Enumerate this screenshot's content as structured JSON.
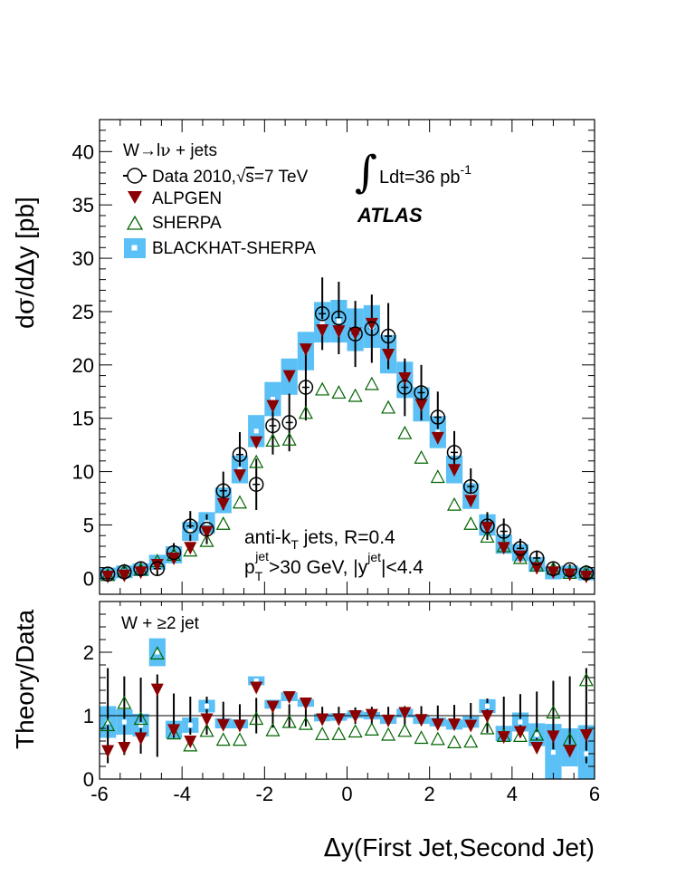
{
  "chart_data": [
    {
      "type": "scatter",
      "panel": "main",
      "ylabel_parts": [
        "d",
        "σ",
        "/d",
        "Δ",
        "y [pb]"
      ],
      "ylim": [
        -1.5,
        43
      ],
      "xlim": [
        -6,
        6
      ],
      "yticks": [
        0,
        5,
        10,
        15,
        20,
        25,
        30,
        35,
        40
      ],
      "legend": {
        "header_parts": [
          "W",
          "→",
          "l",
          "ν",
          " + jets"
        ],
        "data_parts": [
          "Data 2010,",
          "√",
          "s",
          "=7 TeV"
        ],
        "alpgen": "ALPGEN",
        "sherpa": "SHERPA",
        "blackhat": "BLACKHAT-SHERPA",
        "position": "top-left"
      },
      "lumi_parts": [
        "∫",
        "Ldt=36 pb",
        "-1"
      ],
      "atlas_label": "ATLAS",
      "annotation1_parts": [
        "anti-k",
        "T",
        " jets, R=0.4"
      ],
      "annotation2_parts": [
        "p",
        "T",
        "jet",
        ">30 GeV, |y",
        "jet",
        "|<4.4"
      ],
      "x": [
        -5.8,
        -5.4,
        -5.0,
        -4.6,
        -4.2,
        -3.8,
        -3.4,
        -3.0,
        -2.6,
        -2.2,
        -1.8,
        -1.4,
        -1.0,
        -0.6,
        -0.2,
        0.2,
        0.6,
        1.0,
        1.4,
        1.8,
        2.2,
        2.6,
        3.0,
        3.4,
        3.8,
        4.2,
        4.6,
        5.0,
        5.4,
        5.8
      ],
      "series": [
        {
          "name": "Data 2010,√s=7 TeV",
          "marker": "open-circle",
          "values": [
            0.4,
            0.6,
            0.9,
            0.9,
            2.4,
            4.9,
            4.6,
            8.2,
            11.6,
            8.8,
            14.3,
            14.6,
            17.9,
            24.8,
            24.4,
            22.9,
            23.4,
            22.7,
            17.9,
            17.4,
            15.1,
            11.8,
            8.6,
            4.9,
            4.4,
            2.8,
            1.9,
            0.9,
            0.8,
            0.5
          ],
          "errors": [
            0.4,
            0.5,
            0.6,
            0.6,
            0.9,
            1.4,
            1.4,
            1.8,
            2.1,
            2.4,
            2.7,
            2.7,
            3.1,
            3.4,
            3.4,
            3.1,
            3.2,
            3.1,
            2.7,
            2.6,
            2.4,
            2.0,
            1.7,
            1.3,
            1.2,
            0.9,
            0.7,
            0.5,
            0.5,
            0.4
          ]
        },
        {
          "name": "ALPGEN",
          "marker": "filled-down-triangle",
          "color": "#8b0000",
          "values": [
            0.2,
            0.3,
            0.6,
            1.3,
            1.9,
            2.9,
            4.4,
            7.0,
            9.7,
            12.8,
            16.2,
            19.0,
            21.5,
            23.3,
            23.2,
            23.0,
            23.9,
            21.0,
            18.8,
            16.3,
            13.2,
            10.2,
            7.3,
            4.8,
            2.9,
            2.1,
            1.0,
            0.6,
            0.4,
            0.2
          ]
        },
        {
          "name": "SHERPA",
          "marker": "open-up-triangle",
          "color": "#006400",
          "values": [
            0.3,
            0.7,
            0.8,
            1.6,
            2.2,
            2.6,
            3.5,
            5.1,
            7.1,
            10.9,
            12.9,
            13.0,
            15.5,
            17.7,
            17.4,
            17.1,
            18.2,
            16.0,
            13.6,
            11.3,
            9.5,
            6.9,
            5.1,
            3.9,
            3.0,
            1.9,
            1.2,
            0.9,
            0.5,
            0.6
          ]
        },
        {
          "name": "BLACKHAT-SHERPA",
          "marker": "open-square-band",
          "color": "#5bc0f5",
          "values": [
            0.4,
            0.6,
            0.8,
            1.5,
            2.2,
            4.4,
            5.2,
            7.3,
            10.2,
            13.8,
            16.8,
            18.9,
            21.3,
            24.0,
            24.1,
            23.3,
            23.6,
            21.0,
            18.6,
            16.3,
            13.7,
            10.2,
            7.7,
            5.0,
            3.2,
            2.4,
            1.3,
            0.5,
            0.6,
            0.4
          ],
          "band": [
            0.6,
            0.6,
            0.6,
            0.7,
            0.8,
            0.9,
            1.0,
            1.2,
            1.3,
            1.5,
            1.6,
            1.7,
            1.8,
            1.9,
            2.0,
            2.0,
            2.0,
            1.8,
            1.7,
            1.6,
            1.5,
            1.3,
            1.2,
            1.0,
            0.9,
            0.8,
            0.7,
            0.6,
            0.6,
            0.6
          ]
        }
      ]
    },
    {
      "type": "scatter",
      "panel": "ratio",
      "ylabel": "Theory/Data",
      "xlabel_parts": [
        "Δ",
        "y(First Jet,Second Jet)"
      ],
      "label_parts": [
        "W + ",
        "≥",
        "2 jet"
      ],
      "ylim": [
        0,
        2.8
      ],
      "xlim": [
        -6,
        6
      ],
      "yticks": [
        0,
        1,
        2
      ],
      "xticks": [
        -6,
        -4,
        -2,
        0,
        2,
        4,
        6
      ],
      "reference_line": 1,
      "x": [
        -5.8,
        -5.4,
        -5.0,
        -4.6,
        -4.2,
        -3.8,
        -3.4,
        -3.0,
        -2.6,
        -2.2,
        -1.8,
        -1.4,
        -1.0,
        -0.6,
        -0.2,
        0.2,
        0.6,
        1.0,
        1.4,
        1.8,
        2.2,
        2.6,
        3.0,
        3.4,
        3.8,
        4.2,
        4.6,
        5.0,
        5.4,
        5.8
      ],
      "data_errors": [
        0.75,
        0.62,
        0.6,
        0.65,
        0.35,
        0.3,
        0.3,
        0.22,
        0.18,
        0.28,
        0.19,
        0.18,
        0.17,
        0.14,
        0.14,
        0.13,
        0.14,
        0.14,
        0.15,
        0.15,
        0.16,
        0.17,
        0.2,
        0.27,
        0.3,
        0.34,
        0.38,
        0.55,
        0.62,
        0.75
      ],
      "series": [
        {
          "name": "ALPGEN",
          "marker": "filled-down-triangle",
          "color": "#8b0000",
          "values": [
            0.45,
            0.5,
            0.65,
            1.42,
            0.78,
            0.6,
            0.95,
            0.86,
            0.85,
            1.45,
            1.15,
            1.3,
            1.2,
            0.95,
            0.95,
            1.0,
            1.02,
            0.93,
            1.05,
            0.94,
            0.87,
            0.87,
            0.85,
            1.0,
            0.67,
            0.75,
            0.5,
            0.68,
            0.45,
            0.7
          ]
        },
        {
          "name": "SHERPA",
          "marker": "open-up-triangle",
          "color": "#006400",
          "values": [
            0.85,
            1.2,
            0.95,
            1.98,
            0.72,
            0.53,
            0.76,
            0.62,
            0.62,
            0.95,
            0.77,
            0.9,
            0.87,
            0.71,
            0.71,
            0.75,
            0.78,
            0.7,
            0.76,
            0.65,
            0.63,
            0.58,
            0.59,
            0.8,
            0.68,
            0.68,
            0.7,
            1.05,
            0.62,
            1.56
          ]
        },
        {
          "name": "BLACKHAT-SHERPA",
          "marker": "open-square-band",
          "color": "#5bc0f5",
          "values": [
            0.9,
            0.9,
            0.85,
            2.0,
            0.78,
            0.85,
            1.15,
            0.88,
            0.87,
            1.55,
            1.18,
            1.3,
            1.2,
            0.97,
            0.98,
            1.02,
            1.0,
            0.93,
            1.04,
            0.94,
            0.9,
            0.86,
            0.9,
            1.15,
            0.72,
            0.9,
            0.7,
            0.42,
            0.5,
            0.4
          ],
          "band": [
            0.25,
            0.2,
            0.18,
            0.22,
            0.14,
            0.12,
            0.1,
            0.08,
            0.07,
            0.07,
            0.07,
            0.07,
            0.06,
            0.06,
            0.06,
            0.06,
            0.06,
            0.06,
            0.07,
            0.07,
            0.07,
            0.08,
            0.09,
            0.11,
            0.12,
            0.15,
            0.18,
            0.45,
            0.3,
            0.45
          ]
        }
      ]
    }
  ]
}
